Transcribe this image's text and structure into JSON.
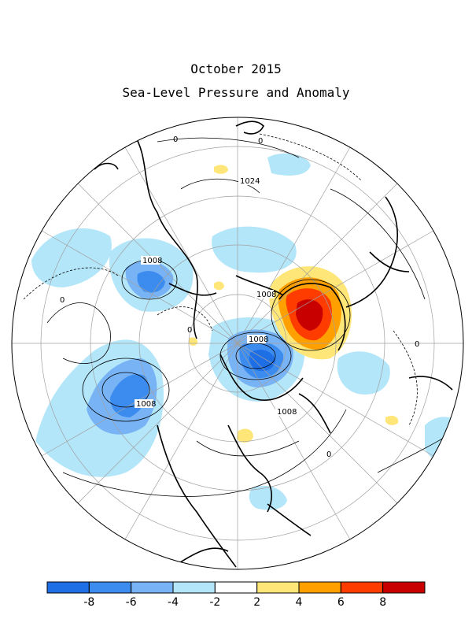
{
  "title": "October 2015",
  "subtitle": "Sea-Level Pressure and Anomaly",
  "contour_labels": [
    "1008",
    "1008",
    "1008",
    "1008",
    "1008",
    "1024",
    "0",
    "0",
    "0",
    "0",
    "0",
    "0"
  ],
  "colorbar": {
    "colors": [
      "#1e6ee6",
      "#3c8cf0",
      "#78b4f5",
      "#b4e6fa",
      "#ffffff",
      "#ffe678",
      "#ffa000",
      "#ff3c00",
      "#c80000"
    ],
    "tick_labels": [
      "-8",
      "-6",
      "-4",
      "-2",
      "2",
      "4",
      "6",
      "8"
    ]
  }
}
